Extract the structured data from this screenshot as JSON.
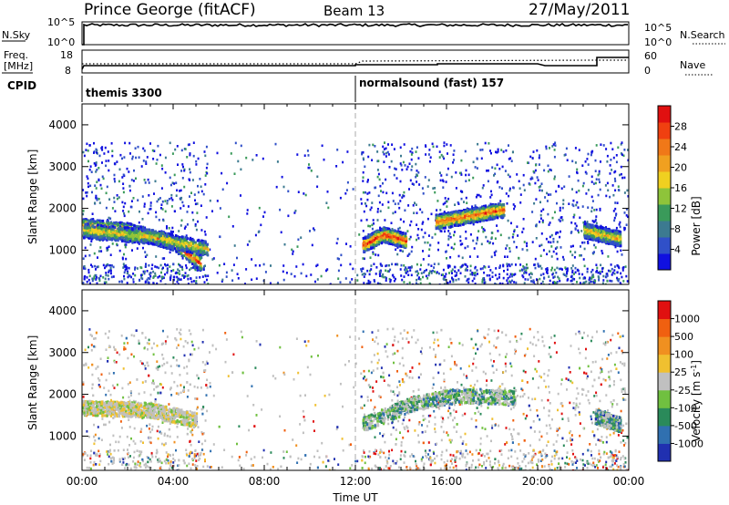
{
  "header": {
    "title": "Prince George (fitACF)",
    "beam": "Beam 13",
    "date": "27/May/2011"
  },
  "sky_panel": {
    "left_label": "N.Sky",
    "left_ticks": [
      "10^5",
      "10^0"
    ],
    "right_ticks": [
      "10^5",
      "10^0"
    ],
    "right_label": "N.Search"
  },
  "freq_panel": {
    "left_label_line1": "Freq.",
    "left_label_line2": "[MHz]",
    "left_ticks": [
      "18",
      "8"
    ],
    "right_ticks": [
      "60",
      "0"
    ],
    "right_label": "Nave"
  },
  "cpid": {
    "label": "CPID",
    "segments": [
      {
        "name": "themis 3300",
        "start_hour": 0
      },
      {
        "name": "normalsound (fast) 157",
        "start_hour": 12
      }
    ]
  },
  "x_axis": {
    "label": "Time UT",
    "ticks": [
      "00:00",
      "04:00",
      "08:00",
      "12:00",
      "16:00",
      "20:00",
      "00:00"
    ]
  },
  "chart_data": [
    {
      "type": "heatmap",
      "title": "",
      "xlabel": "Time UT",
      "ylabel": "Slant Range [km]",
      "xlim_hours": [
        0,
        24
      ],
      "ylim_km": [
        180,
        4500
      ],
      "yticks": [
        "1000",
        "2000",
        "3000",
        "4000"
      ],
      "colorbar": {
        "label": "Power [dB]",
        "ticks": [
          "28",
          "24",
          "20",
          "16",
          "12",
          "8",
          "4"
        ],
        "colors": [
          "#1010e0",
          "#3050c8",
          "#3c7a90",
          "#3a9a5a",
          "#8ec43a",
          "#f0d020",
          "#f0a020",
          "#f07818",
          "#f04010",
          "#e01010"
        ]
      },
      "bands": [
        {
          "x": [
            0,
            2,
            4,
            5.2
          ],
          "y": [
            1600,
            1500,
            1200,
            700
          ],
          "level": 0.85
        },
        {
          "x": [
            0,
            3,
            5.5
          ],
          "y": [
            1500,
            1350,
            1050
          ],
          "level": 0.55
        },
        {
          "x": [
            12.3,
            13.2,
            14.2
          ],
          "y": [
            1150,
            1400,
            1250
          ],
          "level": 0.9
        },
        {
          "x": [
            15.5,
            17.5,
            18.5
          ],
          "y": [
            1700,
            1900,
            2000
          ],
          "level": 0.8
        },
        {
          "x": [
            22,
            23.6
          ],
          "y": [
            1500,
            1300
          ],
          "level": 0.6
        }
      ]
    },
    {
      "type": "heatmap",
      "title": "",
      "xlabel": "Time UT",
      "ylabel": "Slant Range [km]",
      "xlim_hours": [
        0,
        24
      ],
      "ylim_km": [
        180,
        4500
      ],
      "yticks": [
        "1000",
        "2000",
        "3000",
        "4000"
      ],
      "colorbar": {
        "label": "Velocity [m s^-1]",
        "ticks": [
          "1000",
          "500",
          "100",
          "25",
          "-25",
          "-100",
          "-500",
          "-1000"
        ],
        "colors": [
          "#2030b0",
          "#3070b0",
          "#2a8a5a",
          "#70c040",
          "#c0c0c0",
          "#f0c030",
          "#f09020",
          "#f06010",
          "#e01010"
        ]
      },
      "bands": [
        {
          "x": [
            0,
            3,
            5
          ],
          "y": [
            1700,
            1650,
            1400
          ],
          "level": 0.45
        },
        {
          "x": [
            12.3,
            14.5,
            16.5,
            19
          ],
          "y": [
            1300,
            1800,
            2000,
            1950
          ],
          "level": 0.25
        },
        {
          "x": [
            22.5,
            23.6
          ],
          "y": [
            1500,
            1300
          ],
          "level": 0.2
        }
      ]
    }
  ]
}
